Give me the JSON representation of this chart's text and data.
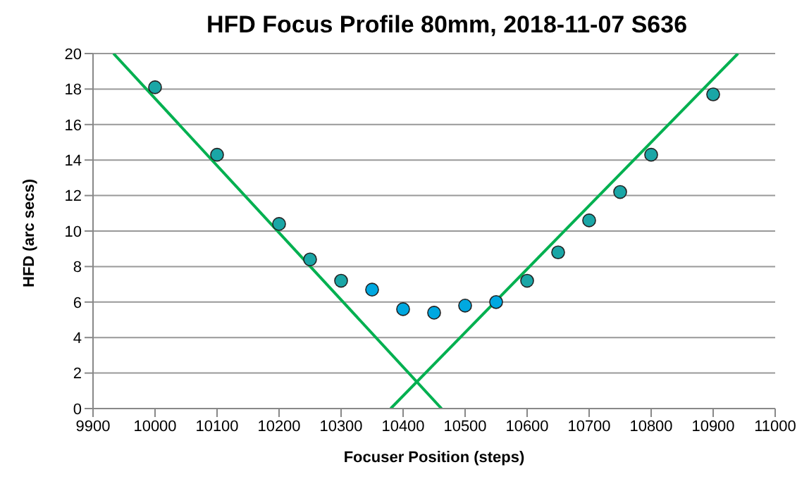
{
  "chart_data": {
    "type": "scatter",
    "title": "HFD Focus Profile 80mm, 2018-11-07  S636",
    "xlabel": "Focuser Position (steps)",
    "ylabel": "HFD (arc secs)",
    "xlim": [
      9900,
      11000
    ],
    "xticks": [
      9900,
      10000,
      10100,
      10200,
      10300,
      10400,
      10500,
      10600,
      10700,
      10800,
      10900,
      11000
    ],
    "ylim": [
      0,
      20
    ],
    "yticks": [
      0,
      2,
      4,
      6,
      8,
      10,
      12,
      14,
      16,
      18,
      20
    ],
    "grid": "y",
    "series": [
      {
        "marker": "circle",
        "color": "#1aa6a6",
        "x": [
          10000,
          10100,
          10200,
          10250,
          10300,
          10600,
          10650,
          10700,
          10750,
          10800,
          10900
        ],
        "values": [
          18.1,
          14.3,
          10.4,
          8.4,
          7.2,
          7.2,
          8.8,
          10.6,
          12.2,
          14.3,
          17.7
        ]
      },
      {
        "marker": "circle",
        "color": "#00a8e0",
        "x": [
          10350,
          10400,
          10450,
          10500,
          10550
        ],
        "values": [
          6.7,
          5.6,
          5.4,
          5.8,
          6.0
        ]
      },
      {
        "type": "line",
        "color": "#00b050",
        "x": [
          9933,
          10462
        ],
        "values": [
          20,
          0
        ]
      },
      {
        "type": "line",
        "color": "#00b050",
        "x": [
          10380,
          10940
        ],
        "values": [
          0,
          20
        ]
      }
    ]
  }
}
